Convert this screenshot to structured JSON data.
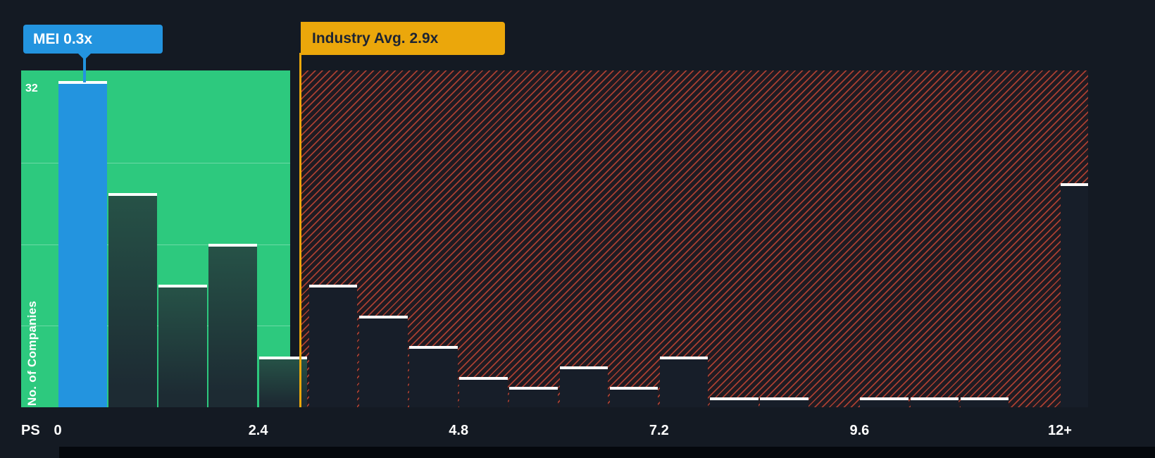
{
  "colors": {
    "background": "#141a23",
    "green_zone": "#2dc97e",
    "blue": "#2394df",
    "yellow": "#eba70b",
    "hatch_red": "#e54f38",
    "navy_bar": "#171e29",
    "label_dark_text": "#1d2433",
    "white": "#ffffff"
  },
  "tooltips": {
    "company_label": "MEI 0.3x",
    "industry_label": "Industry Avg. 2.9x"
  },
  "y_axis": {
    "max_label": "32",
    "title": "No. of Companies"
  },
  "x_axis": {
    "unit_label": "PS",
    "ticks": [
      "0",
      "2.4",
      "4.8",
      "7.2",
      "9.6",
      "12+"
    ]
  },
  "chart_data": {
    "type": "bar",
    "title": "",
    "xlabel": "PS",
    "ylabel": "No. of Companies",
    "ylim": [
      0,
      32
    ],
    "x_ticks": [
      "0",
      "2.4",
      "4.8",
      "7.2",
      "9.6",
      "12+"
    ],
    "bucket_width": 0.6,
    "gridlines": [
      8,
      16,
      24
    ],
    "company_marker": {
      "label": "MEI 0.3x",
      "value": 0.3,
      "count": 32
    },
    "industry_avg": 2.9,
    "industry_avg_label": "Industry Avg. 2.9x",
    "legend_zones": {
      "below_avg_color": "#2dc97e",
      "above_avg_hatch": "#e54f38"
    },
    "buckets": [
      {
        "x0": 0.0,
        "count": 32,
        "highlight": true
      },
      {
        "x0": 0.6,
        "count": 21
      },
      {
        "x0": 1.2,
        "count": 12
      },
      {
        "x0": 1.8,
        "count": 16
      },
      {
        "x0": 2.4,
        "count": 5
      },
      {
        "x0": 3.0,
        "count": 12
      },
      {
        "x0": 3.6,
        "count": 9
      },
      {
        "x0": 4.2,
        "count": 6
      },
      {
        "x0": 4.8,
        "count": 3
      },
      {
        "x0": 5.4,
        "count": 2
      },
      {
        "x0": 6.0,
        "count": 4
      },
      {
        "x0": 6.6,
        "count": 2
      },
      {
        "x0": 7.2,
        "count": 5
      },
      {
        "x0": 7.8,
        "count": 1
      },
      {
        "x0": 8.4,
        "count": 1
      },
      {
        "x0": 9.0,
        "count": 0
      },
      {
        "x0": 9.6,
        "count": 1
      },
      {
        "x0": 10.2,
        "count": 1
      },
      {
        "x0": 10.8,
        "count": 1
      },
      {
        "x0": 11.4,
        "count": 0
      },
      {
        "x0": 12.0,
        "count": 22,
        "overflow": true
      }
    ]
  }
}
